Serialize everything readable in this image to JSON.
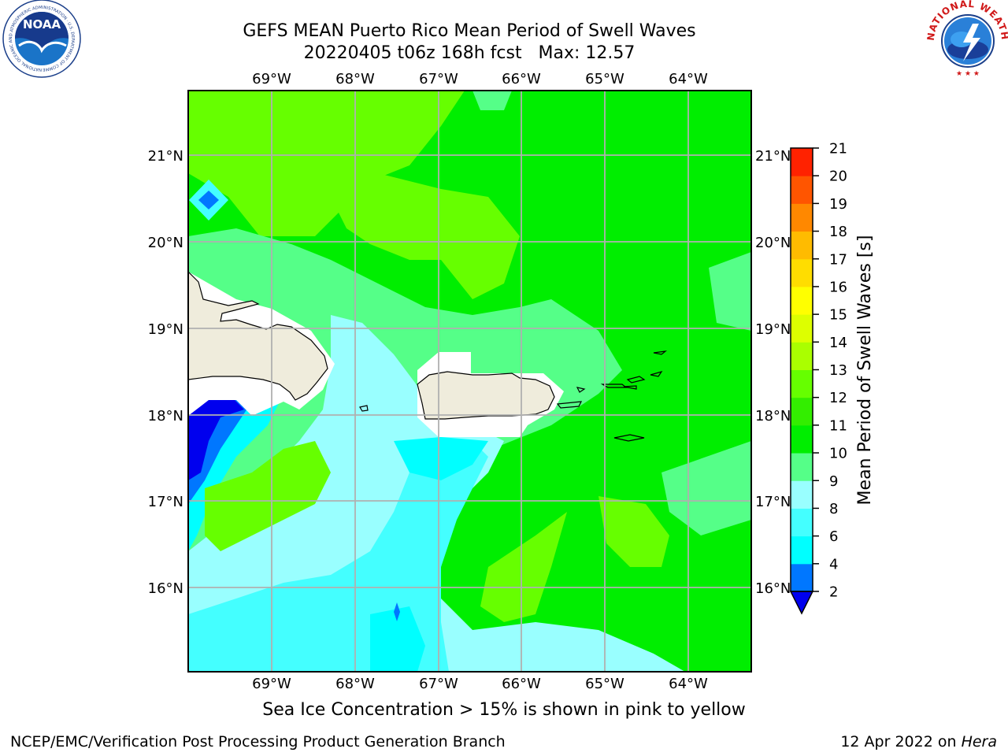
{
  "header": {
    "title_line1": "GEFS MEAN Puerto Rico Mean Period of Swell Waves",
    "title_line2": "20220405 t06z 168h fcst   Max: 12.57"
  },
  "logos": {
    "noaa_text": "NOAA",
    "noaa_ring_text": "NATIONAL OCEANIC AND ATMOSPHERIC ADMINISTRATION · U.S. DEPARTMENT OF COMMERCE",
    "nws_ring_text": "NATIONAL WEATHER SERVICE"
  },
  "map": {
    "lon_labels": [
      "69°W",
      "68°W",
      "67°W",
      "66°W",
      "65°W",
      "64°W"
    ],
    "lat_labels": [
      "21°N",
      "20°N",
      "19°N",
      "18°N",
      "17°N",
      "16°N"
    ],
    "colors": {
      "ocean_green": "#00ee00",
      "light_green": "#66ff00",
      "mint": "#55ff88",
      "pale_cyan": "#99ffff",
      "cyan": "#44ffff",
      "bright_cyan": "#00ffff",
      "blue": "#0077ff",
      "deep_blue": "#0000ee",
      "land": "#efecdc",
      "grid": "#b0b0b0"
    }
  },
  "colorbar": {
    "label": "Mean Period of Swell Waves [s]",
    "ticks": [
      "2",
      "4",
      "6",
      "8",
      "9",
      "10",
      "11",
      "12",
      "13",
      "14",
      "15",
      "16",
      "17",
      "18",
      "19",
      "20",
      "21"
    ],
    "colors": [
      "#0000ee",
      "#0077ff",
      "#00ffff",
      "#44ffff",
      "#99ffff",
      "#55ff88",
      "#00ee00",
      "#33ee00",
      "#66ff00",
      "#aaff00",
      "#ddff00",
      "#ffff00",
      "#ffdd00",
      "#ffbb00",
      "#ff8800",
      "#ff5500",
      "#ff2200",
      "#ff0000"
    ],
    "extend_color": "#0000ee"
  },
  "caption": "Sea Ice Concentration > 15% is shown in pink to yellow",
  "footer": {
    "left": "NCEP/EMC/Verification Post Processing Product Generation Branch",
    "date": "12 Apr 2022 on ",
    "machine": "Hera"
  }
}
